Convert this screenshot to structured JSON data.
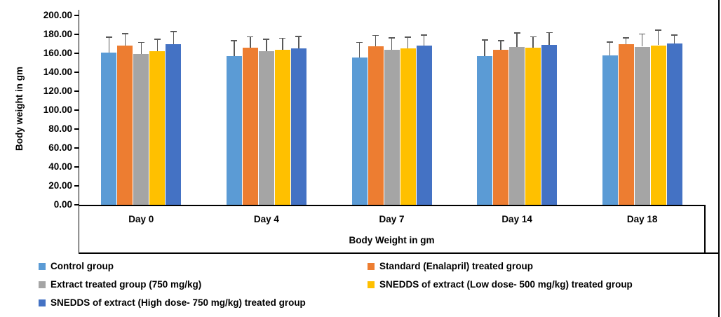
{
  "chart_data": {
    "type": "bar",
    "title": "",
    "categories": [
      "Day 0",
      "Day 4",
      "Day 7",
      "Day 14",
      "Day 18"
    ],
    "series": [
      {
        "name": "Control group",
        "color": "#5B9BD5",
        "values": [
          160.5,
          157.0,
          155.5,
          157.0,
          158.0
        ],
        "errors_up": [
          17.0,
          17.0,
          16.5,
          17.5,
          14.5
        ]
      },
      {
        "name": "Standard (Enalapril) treated group",
        "color": "#ED7D31",
        "values": [
          168.5,
          166.0,
          167.5,
          164.0,
          169.5
        ],
        "errors_up": [
          13.0,
          12.0,
          12.0,
          10.0,
          7.5
        ]
      },
      {
        "name": "Extract treated group (750 mg/kg)",
        "color": "#A5A5A5",
        "values": [
          159.0,
          162.5,
          164.0,
          166.5,
          167.0
        ],
        "errors_up": [
          13.0,
          13.0,
          13.0,
          15.5,
          14.0
        ]
      },
      {
        "name": "SNEDDS of extract (Low dose- 500 mg/kg) treated group",
        "color": "#FFC000",
        "values": [
          162.0,
          163.5,
          165.0,
          166.0,
          168.5
        ],
        "errors_up": [
          13.5,
          13.0,
          12.5,
          12.0,
          16.5
        ]
      },
      {
        "name": "SNEDDS of extract (High dose- 750 mg/kg) treated group",
        "color": "#4472C4",
        "values": [
          169.5,
          165.5,
          168.0,
          169.0,
          170.5
        ],
        "errors_up": [
          14.0,
          13.0,
          12.0,
          13.5,
          9.5
        ]
      }
    ],
    "xlabel": "Body Weight in gm",
    "ylabel": "Body weight in gm",
    "ylim": [
      0,
      200
    ],
    "ytick_step": 20,
    "ytick_labels": [
      "200.00",
      "180.00",
      "160.00",
      "140.00",
      "120.00",
      "100.00",
      "80.00",
      "60.00",
      "40.00",
      "20.00",
      "0.00"
    ],
    "grid": false,
    "legend_position": "bottom",
    "legend_columns": 2,
    "error_bars": "upper-only"
  }
}
